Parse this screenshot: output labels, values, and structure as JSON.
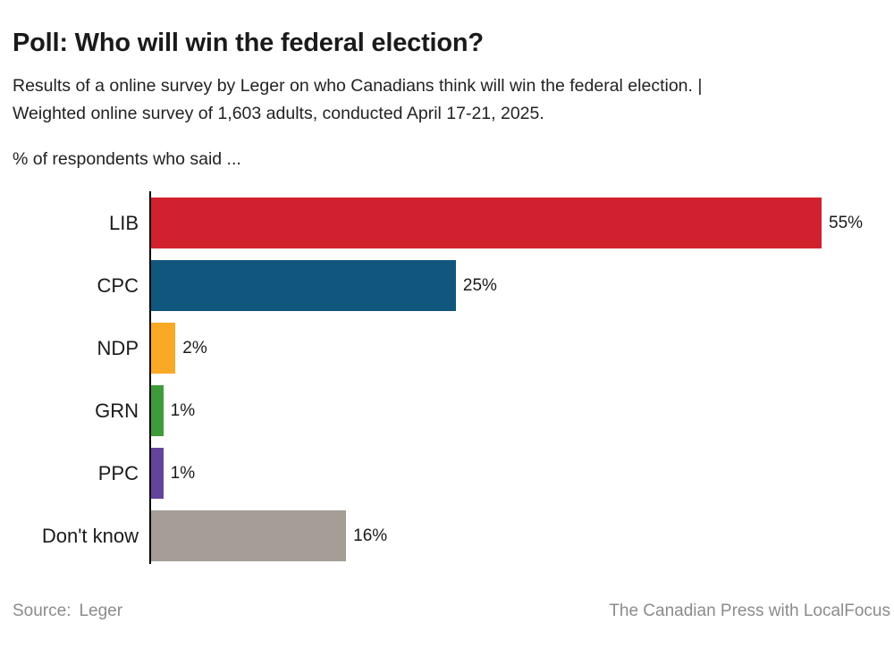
{
  "header": {
    "title": "Poll: Who will win the federal election?",
    "subtitle_line1": "Results of a online survey by Leger on who Canadians think will win the federal election. |",
    "subtitle_line2": "Weighted online survey of 1,603 adults, conducted April 17-21, 2025.",
    "axis_note": "% of respondents who said ..."
  },
  "chart_data": {
    "type": "bar",
    "orientation": "horizontal",
    "title": "Poll: Who will win the federal election?",
    "xlabel": "% of respondents",
    "ylabel": "",
    "xlim": [
      0,
      55
    ],
    "grid": false,
    "legend": false,
    "categories": [
      "LIB",
      "CPC",
      "NDP",
      "GRN",
      "PPC",
      "Don't know"
    ],
    "values": [
      55,
      25,
      2,
      1,
      1,
      16
    ],
    "value_labels": [
      "55%",
      "25%",
      "2%",
      "1%",
      "1%",
      "16%"
    ],
    "bar_colors": [
      "#d2212e",
      "#11567d",
      "#faa927",
      "#3f9b39",
      "#64439b",
      "#a59e96"
    ],
    "axis_color": "#000000"
  },
  "footer": {
    "source_label": "Source:",
    "source_value": "Leger",
    "credit": "The Canadian Press with LocalFocus"
  }
}
